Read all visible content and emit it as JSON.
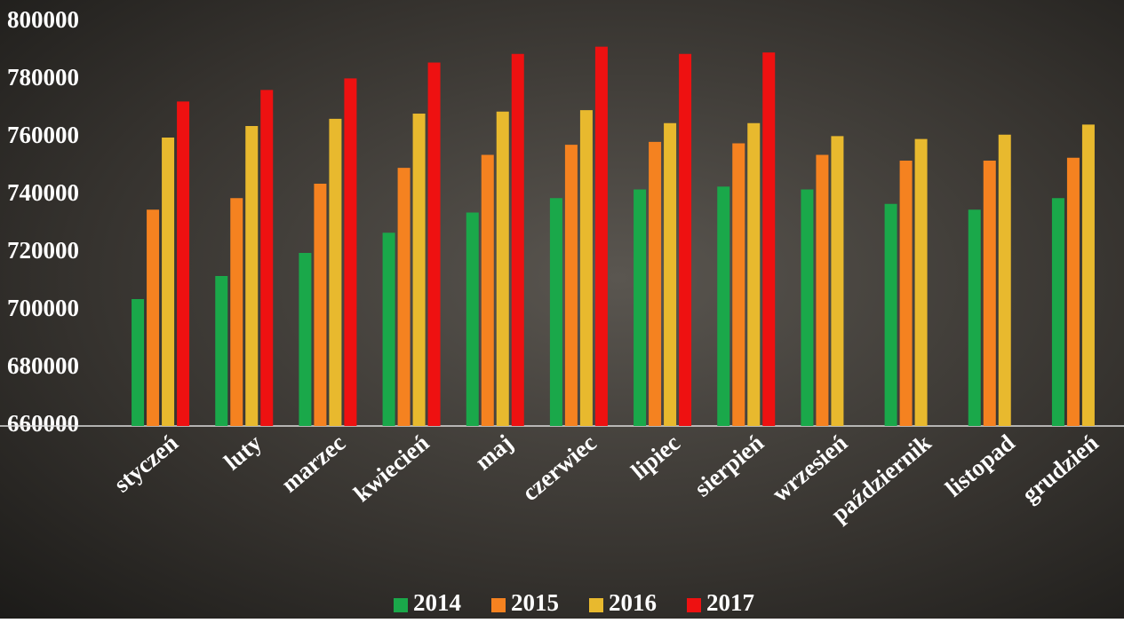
{
  "chart_data": {
    "type": "bar",
    "categories": [
      "styczeń",
      "luty",
      "marzec",
      "kwiecień",
      "maj",
      "czerwiec",
      "lipiec",
      "sierpień",
      "wrzesień",
      "październik",
      "listopad",
      "grudzień"
    ],
    "series": [
      {
        "name": "2014",
        "color": "#1aa84a",
        "values": [
          704000,
          712000,
          720000,
          727000,
          734000,
          739000,
          742000,
          743000,
          742000,
          737000,
          735000,
          739000
        ]
      },
      {
        "name": "2015",
        "color": "#f58220",
        "values": [
          735000,
          739000,
          744000,
          749500,
          754000,
          757500,
          758500,
          758000,
          754000,
          752000,
          752000,
          753000
        ]
      },
      {
        "name": "2016",
        "color": "#e8b92e",
        "values": [
          760000,
          764000,
          766500,
          768300,
          769000,
          769500,
          765000,
          765000,
          760500,
          759500,
          761000,
          764500
        ]
      },
      {
        "name": "2017",
        "color": "#ee1111",
        "values": [
          772500,
          776500,
          780500,
          786000,
          789000,
          791500,
          789000,
          789500,
          null,
          null,
          null,
          null
        ]
      }
    ],
    "ylim": [
      660000,
      800000
    ],
    "yticks": [
      660000,
      680000,
      700000,
      720000,
      740000,
      760000,
      780000,
      800000
    ],
    "legend": "bottom"
  }
}
